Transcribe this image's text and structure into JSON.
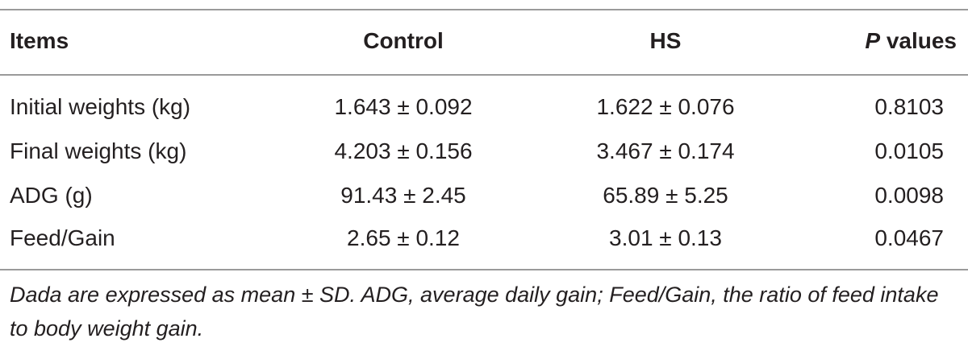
{
  "table": {
    "headers": {
      "items": "Items",
      "control": "Control",
      "hs": "HS",
      "p_italic": "P",
      "p_rest": " values"
    },
    "rows": [
      {
        "items": "Initial weights (kg)",
        "control": "1.643 ± 0.092",
        "hs": "1.622 ± 0.076",
        "p": "0.8103"
      },
      {
        "items": "Final weights (kg)",
        "control": "4.203 ± 0.156",
        "hs": "3.467 ± 0.174",
        "p": "0.0105"
      },
      {
        "items": "ADG (g)",
        "control": "91.43 ± 2.45",
        "hs": "65.89 ± 5.25",
        "p": "0.0098"
      },
      {
        "items": "Feed/Gain",
        "control": "2.65 ± 0.12",
        "hs": "3.01 ± 0.13",
        "p": "0.0467"
      }
    ],
    "note": "Dada are expressed as mean ± SD. ADG, average daily gain; Feed/Gain, the ratio of feed intake to body weight gain."
  }
}
